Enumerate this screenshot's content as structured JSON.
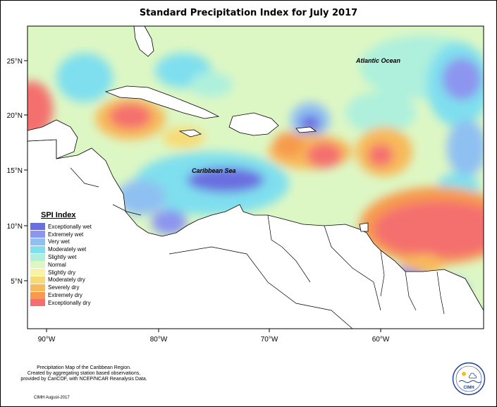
{
  "title": "Standard Precipitation Index for July 2017",
  "map": {
    "lon_ticks": [
      "90°W",
      "80°W",
      "70°W",
      "60°W"
    ],
    "lat_ticks": [
      "25°N",
      "20°N",
      "15°N",
      "10°N",
      "5°N"
    ],
    "ocean_labels": {
      "atlantic": "Atlantic Ocean",
      "caribbean": "Caribbean Sea"
    }
  },
  "legend": {
    "title": "SPI Index",
    "items": [
      {
        "label": "Exceptionally wet",
        "color": "#6a6ee0"
      },
      {
        "label": "Extremely wet",
        "color": "#8c95ef"
      },
      {
        "label": "Very wet",
        "color": "#8fc0f2"
      },
      {
        "label": "Moderately wet",
        "color": "#7fdfee"
      },
      {
        "label": "Slightly wet",
        "color": "#aef0dc"
      },
      {
        "label": "Normal",
        "color": "#ddf7c4"
      },
      {
        "label": "Slightly dry",
        "color": "#f6f2a6"
      },
      {
        "label": "Moderately dry",
        "color": "#f7da76"
      },
      {
        "label": "Severely dry",
        "color": "#f8b95a"
      },
      {
        "label": "Extremely dry",
        "color": "#f79a4e"
      },
      {
        "label": "Exceptionally dry",
        "color": "#f46f6e"
      }
    ]
  },
  "footer": {
    "note_line1": "Precipitation Map of the Caribbean Region.",
    "note_line2": "Created by aggregating station based observations,",
    "note_line3": "provided by CariCOF, with NCEP/NCAR Reanalysis Data.",
    "credit": "CIMH August-2017"
  },
  "logo": {
    "text": "CIMH"
  }
}
